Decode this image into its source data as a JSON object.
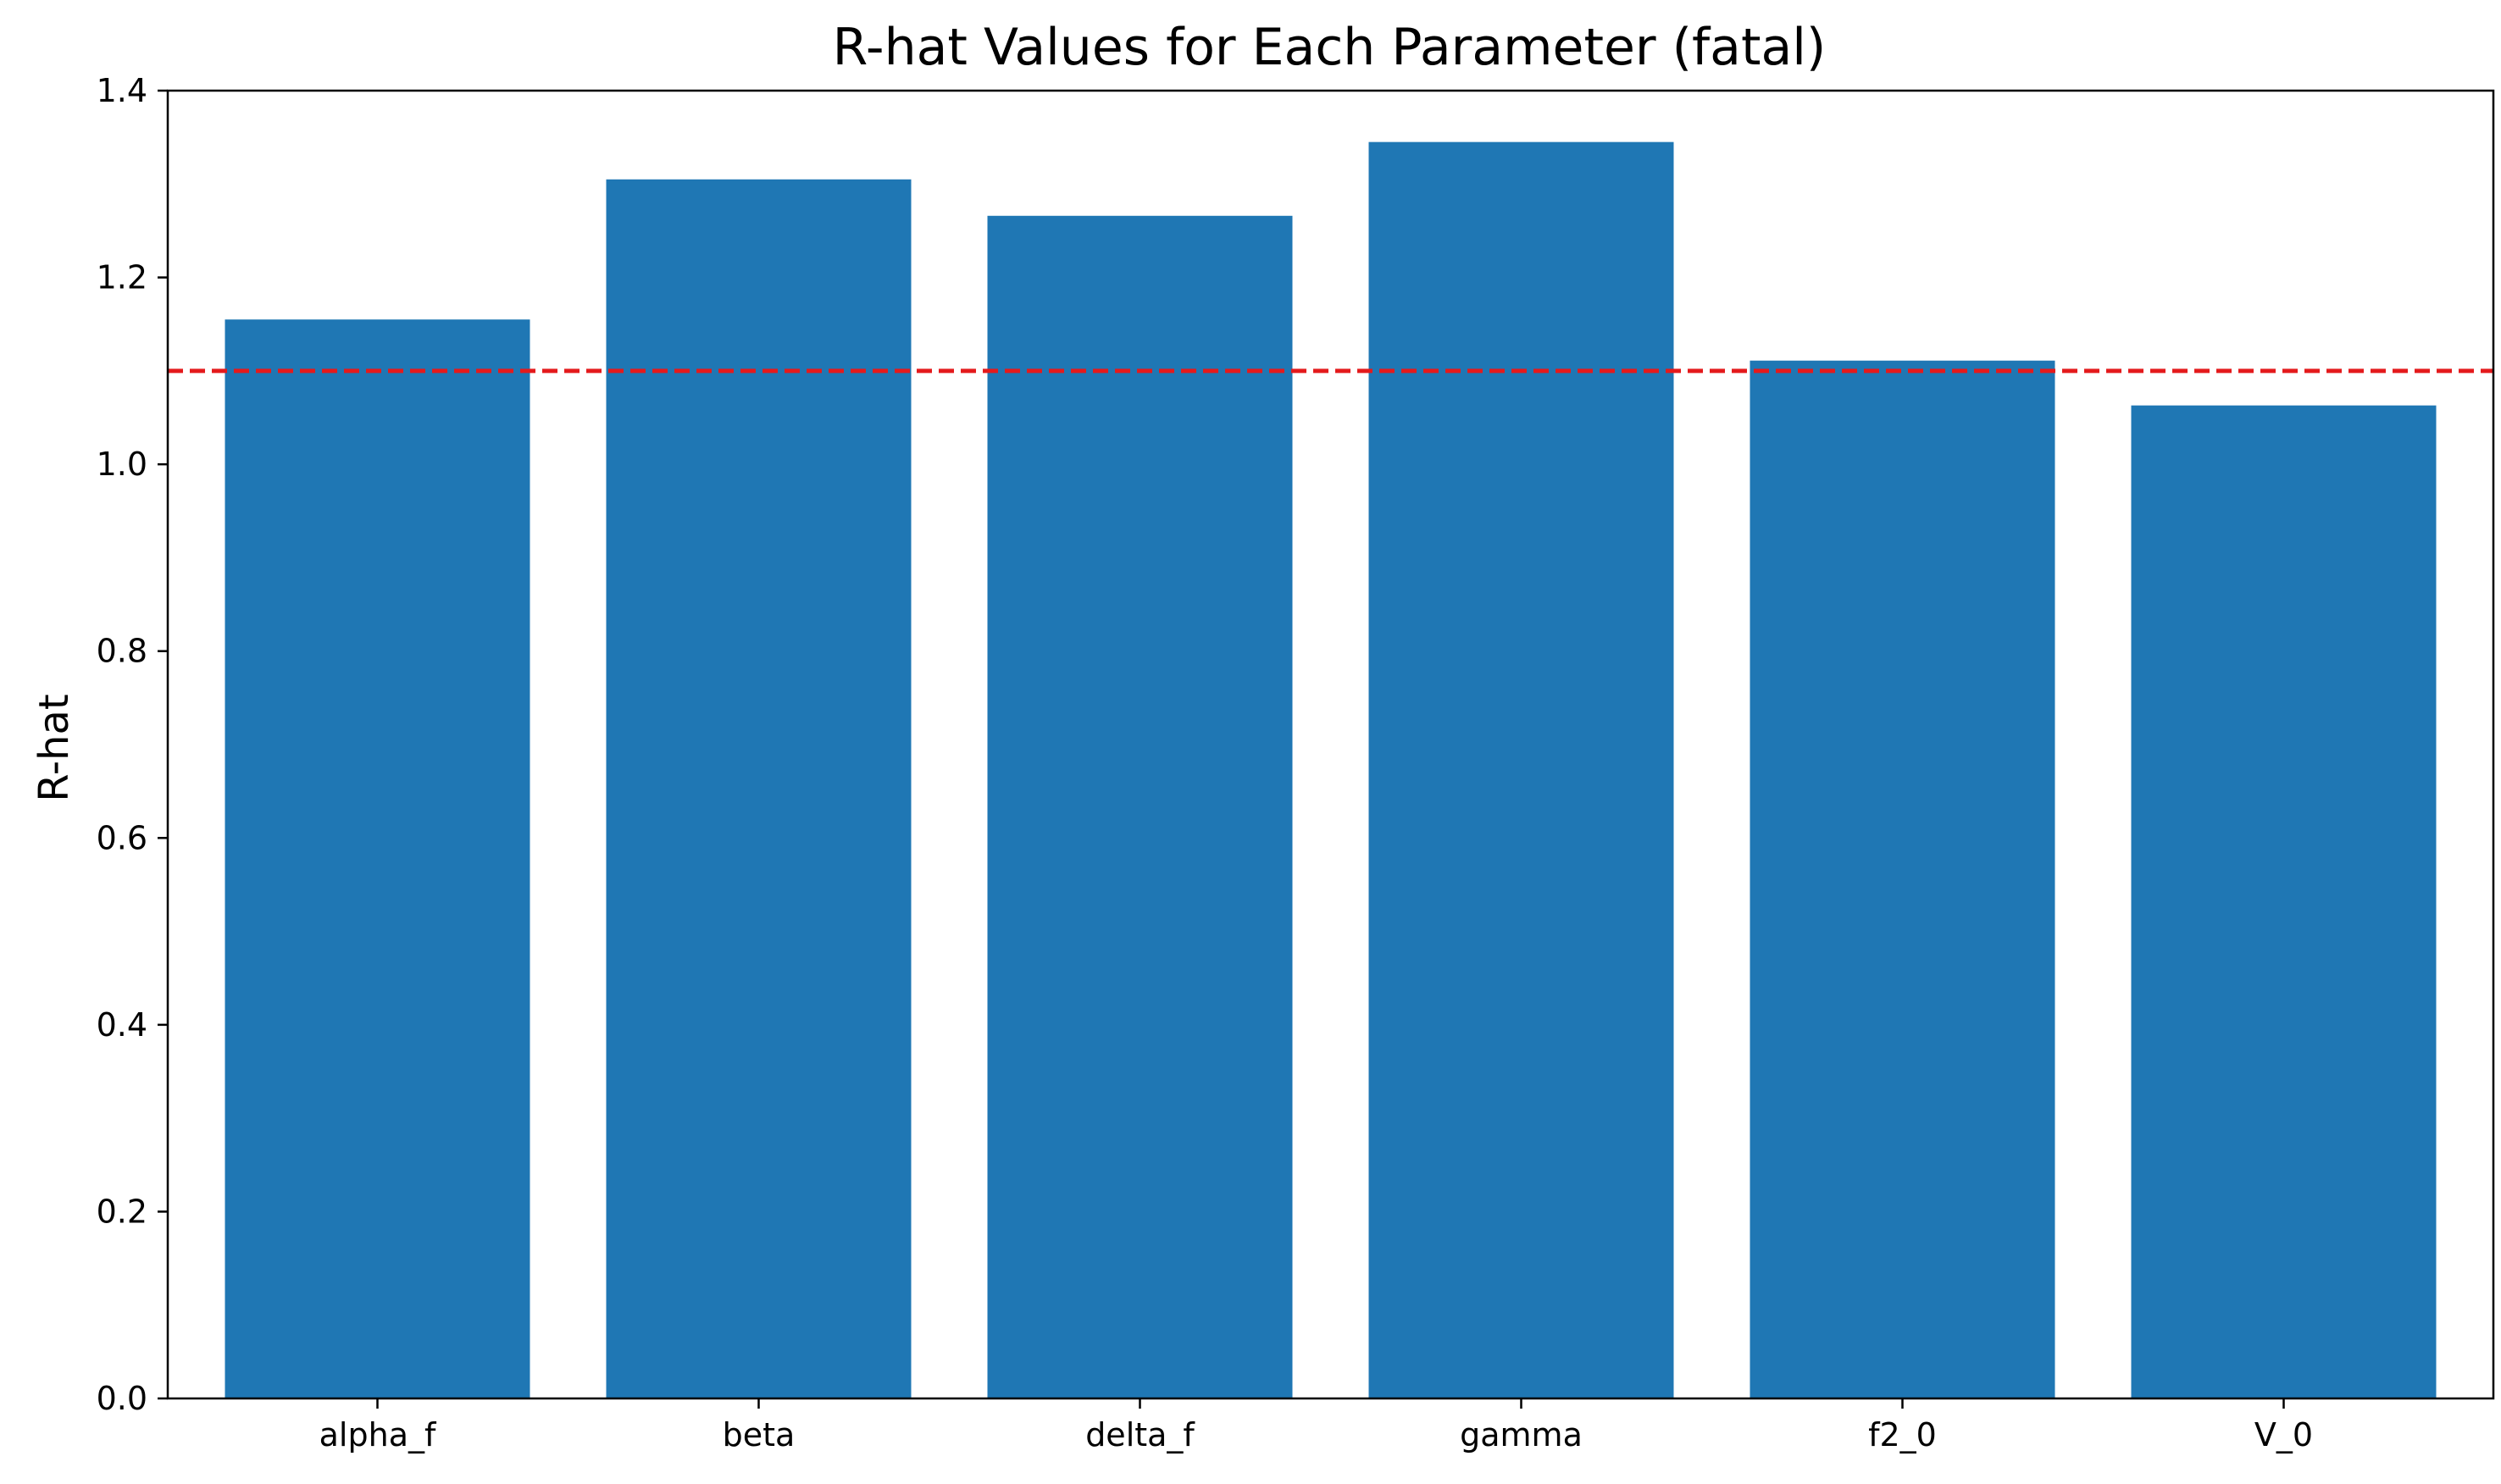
{
  "chart_data": {
    "type": "bar",
    "title": "R-hat Values for Each Parameter (fatal)",
    "xlabel": "",
    "ylabel": "R-hat",
    "categories": [
      "alpha_f",
      "beta",
      "delta_f",
      "gamma",
      "f2_0",
      "V_0"
    ],
    "values": [
      1.155,
      1.305,
      1.266,
      1.345,
      1.111,
      1.063
    ],
    "ylim": [
      0,
      1.4
    ],
    "yticks": [
      "0.0",
      "0.2",
      "0.4",
      "0.6",
      "0.8",
      "1.0",
      "1.2",
      "1.4"
    ],
    "reference_line": {
      "value": 1.1,
      "style": "dashed",
      "color": "#e41a1c"
    },
    "bar_color": "#1f77b4",
    "grid": false,
    "legend": "none"
  }
}
